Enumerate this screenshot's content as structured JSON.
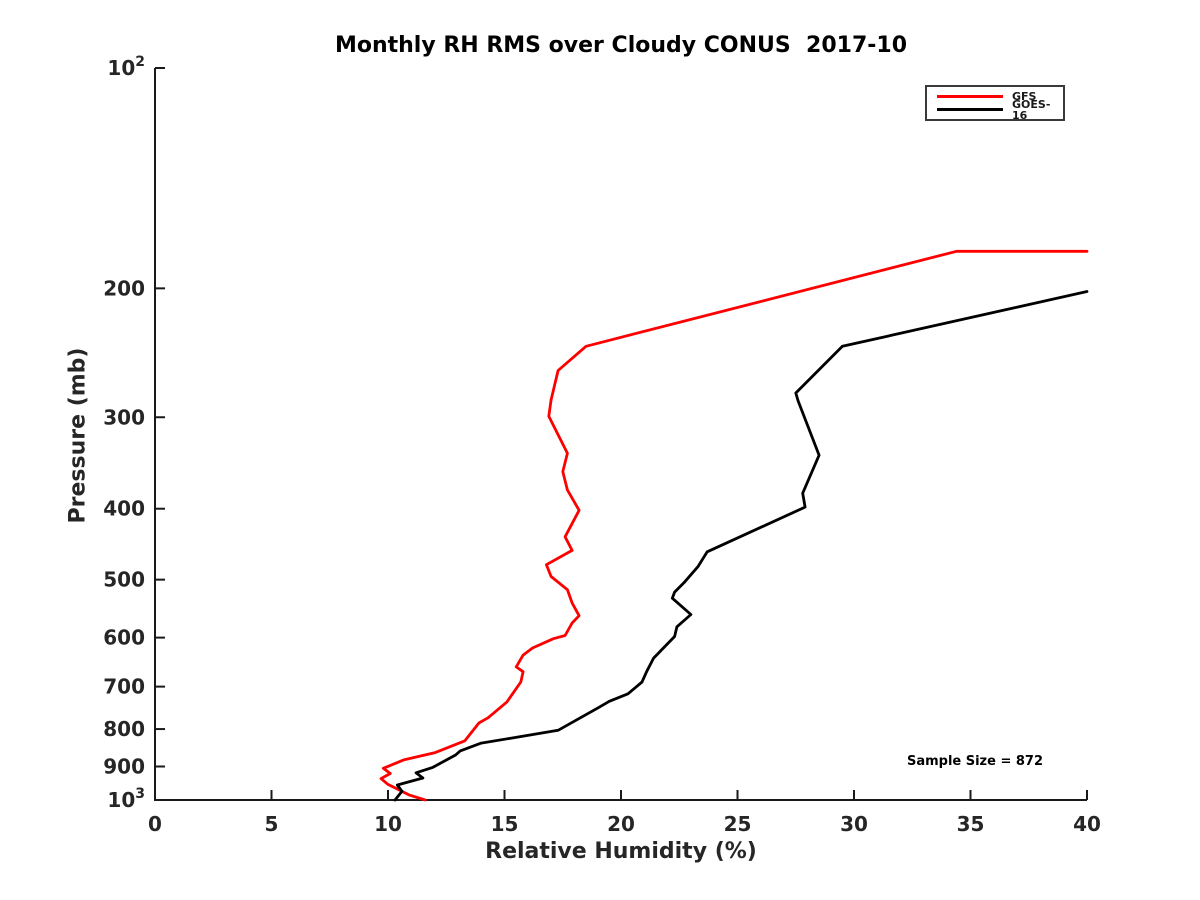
{
  "chart_data": {
    "type": "line",
    "title": "Monthly RH RMS over Cloudy CONUS  2017-10",
    "xlabel": "Relative Humidity (%)",
    "ylabel": "Pressure (mb)",
    "xlim": [
      0,
      40
    ],
    "xticks": [
      0,
      5,
      10,
      15,
      20,
      25,
      30,
      35,
      40
    ],
    "yscale": "log",
    "y_inverted": true,
    "ylim": [
      100,
      1000
    ],
    "yticks": [
      {
        "value": 100,
        "label": "10^2"
      },
      {
        "value": 200,
        "label": "200"
      },
      {
        "value": 300,
        "label": "300"
      },
      {
        "value": 400,
        "label": "400"
      },
      {
        "value": 500,
        "label": "500"
      },
      {
        "value": 600,
        "label": "600"
      },
      {
        "value": 700,
        "label": "700"
      },
      {
        "value": 800,
        "label": "800"
      },
      {
        "value": 900,
        "label": "900"
      },
      {
        "value": 1000,
        "label": "10^3"
      }
    ],
    "grid": false,
    "box": false,
    "axis_color": "#1a1a1a",
    "tick_label_color": "#262626",
    "legend_position": "top-right",
    "annotation": "Sample Size = 872",
    "series": [
      {
        "name": "GFS",
        "color": "#ff0000",
        "points": [
          [
            40.0,
            178
          ],
          [
            34.4,
            178
          ],
          [
            18.5,
            240
          ],
          [
            17.3,
            259
          ],
          [
            17.0,
            284
          ],
          [
            16.9,
            299
          ],
          [
            17.7,
            336
          ],
          [
            17.5,
            356
          ],
          [
            17.7,
            377
          ],
          [
            18.2,
            402
          ],
          [
            17.6,
            437
          ],
          [
            17.9,
            456
          ],
          [
            16.8,
            477
          ],
          [
            17.0,
            495
          ],
          [
            17.7,
            516
          ],
          [
            17.9,
            538
          ],
          [
            18.2,
            560
          ],
          [
            17.9,
            573
          ],
          [
            17.6,
            596
          ],
          [
            17.1,
            602
          ],
          [
            16.2,
            620
          ],
          [
            15.8,
            634
          ],
          [
            15.5,
            658
          ],
          [
            15.8,
            668
          ],
          [
            15.7,
            690
          ],
          [
            15.1,
            735
          ],
          [
            14.3,
            772
          ],
          [
            13.9,
            785
          ],
          [
            13.3,
            830
          ],
          [
            12.0,
            862
          ],
          [
            10.7,
            881
          ],
          [
            9.8,
            905
          ],
          [
            10.1,
            920
          ],
          [
            9.7,
            935
          ],
          [
            10.0,
            952
          ],
          [
            10.9,
            984
          ],
          [
            11.6,
            1000
          ]
        ]
      },
      {
        "name": "GOES-16",
        "color": "#000000",
        "points": [
          [
            40.0,
            202
          ],
          [
            29.5,
            240
          ],
          [
            27.5,
            278
          ],
          [
            27.6,
            285
          ],
          [
            28.5,
            338
          ],
          [
            27.8,
            381
          ],
          [
            27.9,
            398
          ],
          [
            23.7,
            458
          ],
          [
            23.3,
            480
          ],
          [
            22.7,
            505
          ],
          [
            22.3,
            520
          ],
          [
            22.2,
            530
          ],
          [
            23.0,
            558
          ],
          [
            22.4,
            580
          ],
          [
            22.3,
            598
          ],
          [
            21.4,
            640
          ],
          [
            21.1,
            668
          ],
          [
            20.9,
            690
          ],
          [
            20.3,
            716
          ],
          [
            19.5,
            733
          ],
          [
            19.0,
            749
          ],
          [
            17.3,
            803
          ],
          [
            15.3,
            823
          ],
          [
            14.0,
            836
          ],
          [
            13.1,
            857
          ],
          [
            12.9,
            868
          ],
          [
            11.9,
            903
          ],
          [
            11.2,
            918
          ],
          [
            11.5,
            933
          ],
          [
            10.4,
            954
          ],
          [
            10.6,
            973
          ],
          [
            10.3,
            1000
          ]
        ]
      }
    ]
  }
}
